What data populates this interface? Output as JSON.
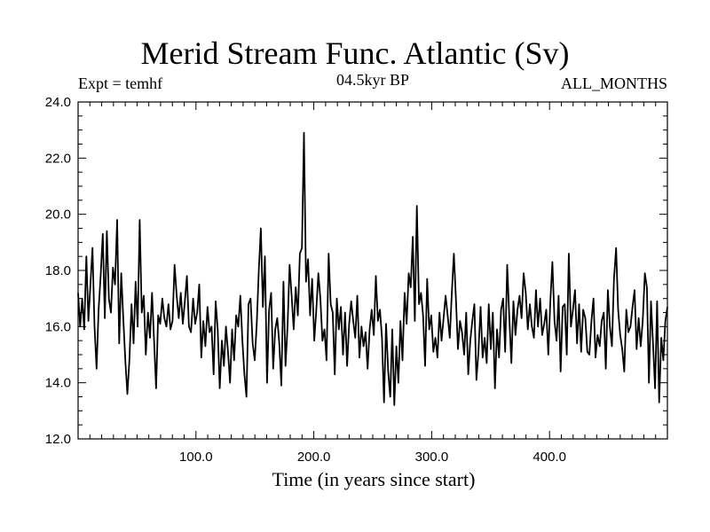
{
  "header": {
    "title": "Merid Stream Func. Atlantic (Sv)",
    "left_label": "Expt = temhf",
    "center_label": "04.5kyr BP",
    "right_label": "ALL_MONTHS"
  },
  "chart_data": {
    "type": "line",
    "title": "Merid Stream Func. Atlantic (Sv)",
    "xlabel": "Time (in years since start)",
    "ylabel": "",
    "xlim": [
      0,
      500
    ],
    "ylim": [
      12.0,
      24.0
    ],
    "xticks": [
      100,
      200,
      300,
      400
    ],
    "xtick_labels": [
      "100.0",
      "200.0",
      "300.0",
      "400.0"
    ],
    "yticks": [
      12,
      14,
      16,
      18,
      20,
      22,
      24
    ],
    "ytick_labels": [
      "12.0",
      "14.0",
      "16.0",
      "18.0",
      "20.0",
      "22.0",
      "24.0"
    ],
    "grid": false,
    "series": [
      {
        "name": "Merid Stream Func. Atlantic",
        "color": "#000000",
        "values": [
          17.2,
          16.0,
          17.0,
          15.9,
          18.5,
          16.2,
          17.5,
          18.8,
          16.0,
          14.5,
          16.6,
          17.8,
          19.3,
          16.3,
          19.4,
          17.0,
          16.5,
          18.1,
          17.5,
          19.8,
          15.4,
          17.9,
          16.3,
          14.8,
          13.6,
          14.8,
          16.8,
          15.4,
          17.6,
          16.0,
          19.8,
          16.5,
          17.1,
          15.0,
          16.5,
          15.6,
          17.2,
          15.5,
          13.8,
          16.4,
          16.1,
          17.0,
          16.3,
          16.0,
          16.8,
          15.9,
          16.2,
          18.2,
          17.1,
          16.3,
          17.2,
          16.1,
          16.9,
          17.8,
          16.0,
          15.8,
          17.0,
          16.1,
          16.5,
          17.5,
          14.9,
          16.2,
          15.3,
          16.7,
          15.8,
          16.0,
          14.3,
          16.9,
          15.9,
          13.8,
          15.5,
          14.6,
          16.0,
          15.1,
          14.0,
          15.9,
          14.8,
          16.4,
          16.0,
          17.1,
          15.5,
          14.3,
          13.5,
          16.8,
          17.0,
          15.4,
          14.8,
          16.1,
          18.0,
          19.5,
          16.7,
          18.5,
          14.0,
          16.6,
          17.2,
          14.5,
          15.9,
          16.3,
          15.4,
          13.9,
          17.6,
          14.6,
          16.0,
          18.2,
          17.1,
          15.9,
          17.4,
          16.4,
          18.6,
          18.8,
          22.9,
          17.6,
          18.4,
          16.4,
          17.7,
          15.5,
          16.6,
          17.9,
          17.0,
          15.5,
          15.9,
          14.8,
          18.6,
          16.8,
          16.5,
          14.3,
          17.0,
          15.9,
          16.7,
          15.0,
          16.5,
          14.6,
          16.1,
          16.9,
          16.2,
          15.6,
          17.1,
          14.9,
          16.0,
          15.3,
          15.8,
          14.5,
          15.9,
          16.6,
          15.7,
          17.8,
          16.2,
          16.6,
          15.6,
          13.3,
          16.1,
          14.4,
          13.5,
          15.9,
          13.2,
          15.3,
          14.0,
          16.2,
          14.8,
          17.2,
          16.1,
          17.9,
          17.4,
          19.2,
          16.2,
          20.3,
          16.8,
          17.2,
          16.4,
          14.6,
          17.7,
          15.9,
          16.4,
          15.1,
          15.6,
          14.9,
          16.5,
          15.5,
          16.3,
          17.1,
          16.4,
          15.6,
          17.2,
          18.6,
          17.0,
          15.2,
          16.2,
          15.8,
          15.0,
          16.5,
          14.3,
          15.5,
          16.2,
          16.8,
          14.1,
          15.1,
          16.7,
          14.9,
          15.6,
          14.7,
          16.8,
          15.2,
          16.5,
          13.8,
          15.9,
          14.9,
          16.6,
          17.0,
          15.1,
          18.2,
          16.3,
          14.7,
          16.9,
          15.7,
          16.6,
          17.1,
          16.3,
          17.9,
          17.2,
          15.9,
          16.8,
          16.0,
          15.6,
          17.3,
          16.0,
          17.0,
          15.7,
          16.1,
          16.6,
          15.0,
          16.9,
          18.3,
          16.2,
          15.5,
          17.1,
          14.4,
          16.7,
          16.8,
          15.0,
          18.6,
          16.0,
          16.6,
          17.3,
          15.4,
          16.8,
          15.1,
          16.6,
          16.3,
          15.1,
          15.0,
          16.2,
          17.0,
          14.9,
          15.7,
          15.3,
          16.2,
          16.5,
          14.5,
          17.3,
          16.0,
          15.3,
          17.7,
          18.8,
          16.6,
          15.7,
          15.2,
          14.4,
          16.6,
          15.8,
          16.0,
          16.7,
          17.3,
          15.2,
          16.3,
          15.3,
          16.2,
          17.9,
          17.4,
          14.0,
          16.9,
          15.4,
          13.8,
          16.9,
          13.3,
          15.6,
          14.8,
          16.2,
          16.7
        ]
      }
    ]
  }
}
